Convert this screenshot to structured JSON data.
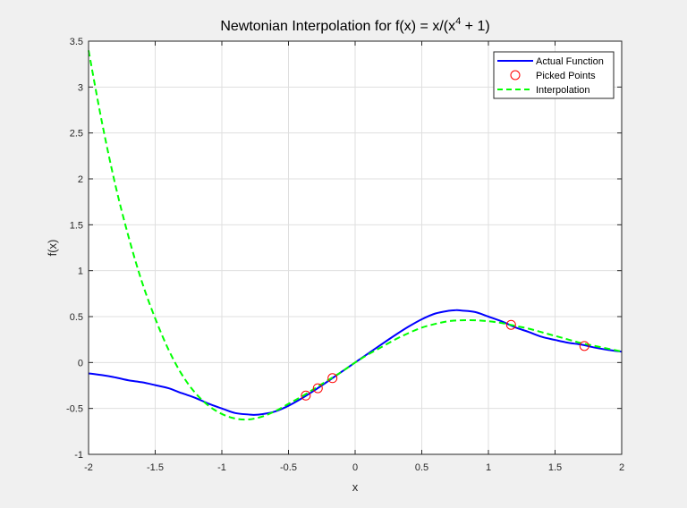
{
  "chart_data": {
    "type": "line",
    "title": "Newtonian Interpolation for f(x) = x/(x",
    "title_sup": "4",
    "title_end": " + 1)",
    "xlabel": "x",
    "ylabel": "f(x)",
    "xlim": [
      -2,
      2
    ],
    "ylim": [
      -1,
      3.5
    ],
    "xticks": [
      -2,
      -1.5,
      -1,
      -0.5,
      0,
      0.5,
      1,
      1.5,
      2
    ],
    "xtick_labels": [
      "-2",
      "-1.5",
      "-1",
      "-0.5",
      "0",
      "0.5",
      "1",
      "1.5",
      "2"
    ],
    "yticks": [
      -1,
      -0.5,
      0,
      0.5,
      1,
      1.5,
      2,
      2.5,
      3,
      3.5
    ],
    "ytick_labels": [
      "-1",
      "-0.5",
      "0",
      "0.5",
      "1",
      "1.5",
      "2",
      "2.5",
      "3",
      "3.5"
    ],
    "grid": true,
    "legend_position": "top-right",
    "series": [
      {
        "name": "Actual Function",
        "style": "solid",
        "color": "#0000ff",
        "x": [
          -2,
          -1.9,
          -1.8,
          -1.7,
          -1.6,
          -1.5,
          -1.4,
          -1.3,
          -1.2,
          -1.1,
          -1.0,
          -0.9,
          -0.8,
          -0.76,
          -0.7,
          -0.6,
          -0.5,
          -0.4,
          -0.3,
          -0.2,
          -0.1,
          0,
          0.1,
          0.2,
          0.3,
          0.4,
          0.5,
          0.6,
          0.7,
          0.76,
          0.8,
          0.9,
          1.0,
          1.1,
          1.2,
          1.3,
          1.4,
          1.5,
          1.6,
          1.7,
          1.8,
          1.9,
          2.0
        ],
        "y": [
          -0.118,
          -0.137,
          -0.162,
          -0.194,
          -0.215,
          -0.246,
          -0.28,
          -0.334,
          -0.384,
          -0.448,
          -0.5,
          -0.55,
          -0.566,
          -0.57,
          -0.563,
          -0.533,
          -0.471,
          -0.39,
          -0.298,
          -0.2,
          -0.1,
          0,
          0.1,
          0.2,
          0.298,
          0.39,
          0.471,
          0.533,
          0.563,
          0.57,
          0.566,
          0.55,
          0.5,
          0.448,
          0.384,
          0.334,
          0.28,
          0.246,
          0.215,
          0.194,
          0.162,
          0.137,
          0.118
        ]
      },
      {
        "name": "Picked Points",
        "style": "marker",
        "color": "#ff0000",
        "x": [
          -0.37,
          -0.28,
          -0.17,
          1.17,
          1.72
        ],
        "y": [
          -0.36,
          -0.28,
          -0.17,
          0.41,
          0.18
        ]
      },
      {
        "name": "Interpolation",
        "style": "dashed",
        "color": "#00ff00",
        "x": [
          -2,
          -1.9,
          -1.8,
          -1.7,
          -1.6,
          -1.5,
          -1.4,
          -1.3,
          -1.2,
          -1.1,
          -1.0,
          -0.9,
          -0.8,
          -0.7,
          -0.6,
          -0.5,
          -0.4,
          -0.3,
          -0.2,
          -0.1,
          0,
          0.1,
          0.2,
          0.3,
          0.4,
          0.5,
          0.6,
          0.7,
          0.8,
          0.9,
          1.0,
          1.1,
          1.2,
          1.3,
          1.4,
          1.5,
          1.6,
          1.7,
          1.8,
          1.9,
          2.0
        ],
        "y": [
          3.4,
          2.62,
          1.94,
          1.37,
          0.88,
          0.48,
          0.14,
          -0.13,
          -0.33,
          -0.47,
          -0.56,
          -0.61,
          -0.62,
          -0.59,
          -0.53,
          -0.45,
          -0.37,
          -0.28,
          -0.19,
          -0.1,
          0.0,
          0.09,
          0.17,
          0.25,
          0.32,
          0.38,
          0.42,
          0.45,
          0.46,
          0.46,
          0.45,
          0.43,
          0.4,
          0.37,
          0.33,
          0.29,
          0.25,
          0.21,
          0.18,
          0.15,
          0.12
        ]
      }
    ]
  }
}
